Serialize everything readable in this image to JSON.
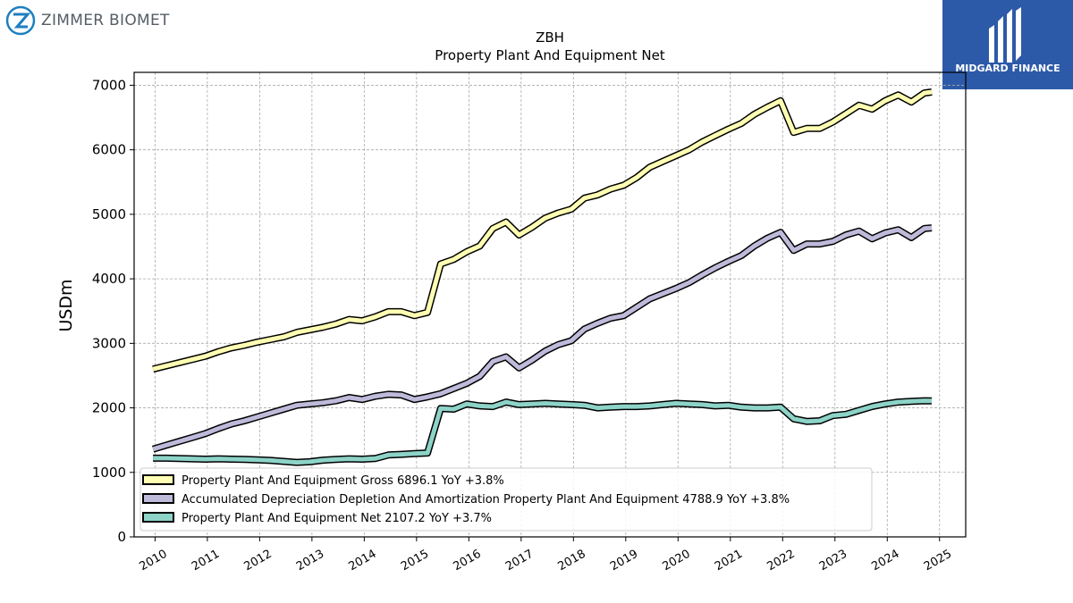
{
  "brand": {
    "name": "ZIMMER BIOMET",
    "icon": "zimmer-biomet-logo-icon",
    "color": "#1e7fc0"
  },
  "badge": {
    "name": "MIDGARD FINANCE",
    "icon": "midgard-finance-logo-icon",
    "color": "#2d5aa8"
  },
  "chart_data": {
    "type": "line",
    "title": "ZBH",
    "subtitle": "Property Plant And Equipment Net",
    "xlabel": "",
    "ylabel": "USDm",
    "xlim": [
      2009.6,
      2025.5
    ],
    "ylim": [
      0,
      7200
    ],
    "yticks": [
      0,
      1000,
      2000,
      3000,
      4000,
      5000,
      6000,
      7000
    ],
    "xticks": [
      2010,
      2011,
      2012,
      2013,
      2014,
      2015,
      2016,
      2017,
      2018,
      2019,
      2020,
      2021,
      2022,
      2023,
      2024,
      2025
    ],
    "grid": true,
    "legend_position": "lower-left",
    "x": [
      2009.96,
      2010.21,
      2010.46,
      2010.71,
      2010.96,
      2011.21,
      2011.46,
      2011.71,
      2011.96,
      2012.21,
      2012.46,
      2012.71,
      2012.96,
      2013.21,
      2013.46,
      2013.71,
      2013.96,
      2014.21,
      2014.46,
      2014.71,
      2014.96,
      2015.21,
      2015.46,
      2015.71,
      2015.96,
      2016.21,
      2016.46,
      2016.71,
      2016.96,
      2017.21,
      2017.46,
      2017.71,
      2017.96,
      2018.21,
      2018.46,
      2018.71,
      2018.96,
      2019.21,
      2019.46,
      2019.71,
      2019.96,
      2020.21,
      2020.46,
      2020.71,
      2020.96,
      2021.21,
      2021.46,
      2021.71,
      2021.96,
      2022.21,
      2022.46,
      2022.71,
      2022.96,
      2023.21,
      2023.46,
      2023.71,
      2023.96,
      2024.21,
      2024.46,
      2024.71,
      2024.85
    ],
    "series": [
      {
        "name": "Property Plant And Equipment Gross",
        "legend": "Property Plant And Equipment Gross  6896.1 YoY +3.8%",
        "color": "#ffffb3",
        "values": [
          2600,
          2650,
          2700,
          2750,
          2800,
          2870,
          2930,
          2970,
          3020,
          3060,
          3100,
          3170,
          3210,
          3250,
          3300,
          3370,
          3350,
          3410,
          3490,
          3490,
          3430,
          3480,
          4230,
          4300,
          4420,
          4510,
          4780,
          4880,
          4680,
          4800,
          4940,
          5020,
          5080,
          5250,
          5300,
          5390,
          5450,
          5570,
          5730,
          5820,
          5910,
          6000,
          6120,
          6220,
          6320,
          6410,
          6550,
          6660,
          6760,
          6270,
          6330,
          6330,
          6430,
          6560,
          6690,
          6630,
          6760,
          6850,
          6740,
          6880,
          6896
        ]
      },
      {
        "name": "Accumulated Depreciation Depletion And Amortization Property Plant And Equipment",
        "legend": "Accumulated Depreciation Depletion And Amortization Property Plant And Equipment  4788.9 YoY +3.8%",
        "color": "#bebada",
        "values": [
          1360,
          1420,
          1480,
          1540,
          1600,
          1680,
          1750,
          1800,
          1860,
          1920,
          1980,
          2040,
          2060,
          2080,
          2110,
          2160,
          2130,
          2180,
          2210,
          2200,
          2130,
          2170,
          2220,
          2300,
          2380,
          2490,
          2720,
          2790,
          2620,
          2740,
          2880,
          2980,
          3040,
          3220,
          3310,
          3390,
          3430,
          3560,
          3690,
          3770,
          3850,
          3940,
          4060,
          4170,
          4270,
          4360,
          4510,
          4630,
          4720,
          4440,
          4540,
          4540,
          4580,
          4680,
          4740,
          4620,
          4710,
          4760,
          4640,
          4780,
          4789
        ]
      },
      {
        "name": "Property Plant And Equipment Net",
        "legend": "Property Plant And Equipment Net  2107.2 YoY +3.7%",
        "color": "#8dd3c7",
        "values": [
          1220,
          1220,
          1215,
          1210,
          1205,
          1210,
          1205,
          1200,
          1195,
          1185,
          1170,
          1155,
          1165,
          1190,
          1200,
          1210,
          1205,
          1215,
          1270,
          1280,
          1290,
          1300,
          1990,
          1980,
          2060,
          2030,
          2020,
          2090,
          2050,
          2060,
          2070,
          2060,
          2050,
          2040,
          2000,
          2010,
          2020,
          2020,
          2030,
          2050,
          2070,
          2060,
          2050,
          2030,
          2040,
          2010,
          2000,
          2000,
          2010,
          1830,
          1790,
          1800,
          1880,
          1900,
          1960,
          2020,
          2060,
          2090,
          2100,
          2110,
          2107
        ]
      }
    ]
  }
}
